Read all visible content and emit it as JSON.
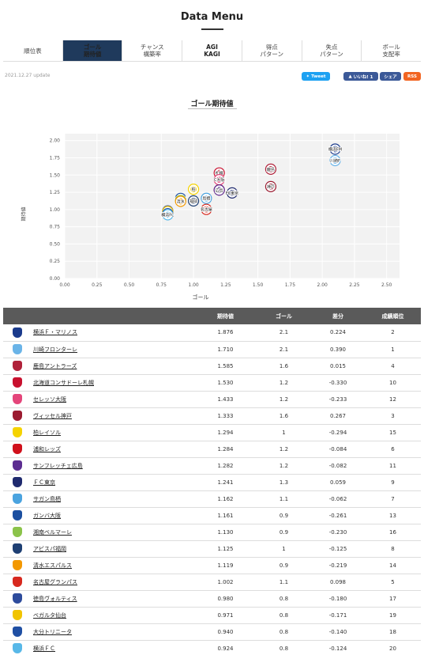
{
  "header": {
    "title": "Data Menu"
  },
  "nav": {
    "tabs": [
      {
        "label": "順位表",
        "active": false,
        "bold": false
      },
      {
        "label": "ゴール\n期待値",
        "active": true,
        "bold": true
      },
      {
        "label": "チャンス\n構築率",
        "active": false,
        "bold": false
      },
      {
        "label": "AGI\nKAGI",
        "active": false,
        "bold": true
      },
      {
        "label": "得点\nパターン",
        "active": false,
        "bold": false
      },
      {
        "label": "失点\nパターン",
        "active": false,
        "bold": false
      },
      {
        "label": "ボール\n支配率",
        "active": false,
        "bold": false
      }
    ]
  },
  "update_text": "2021.12.27 update",
  "social": {
    "tweet": "Tweet",
    "like": "いいね! 1",
    "share": "シェア",
    "rss": "RSS"
  },
  "section_title": "ゴール期待値",
  "chart_data": {
    "type": "scatter",
    "xlabel": "ゴール",
    "ylabel": "期待値",
    "xlim": [
      0,
      2.6
    ],
    "ylim": [
      0,
      2.1
    ],
    "xticks": [
      "0.00",
      "0.25",
      "0.50",
      "0.75",
      "1.00",
      "1.25",
      "1.50",
      "1.75",
      "2.00",
      "2.25",
      "2.50"
    ],
    "yticks": [
      "0.00",
      "0.25",
      "0.50",
      "0.75",
      "1.00",
      "1.25",
      "1.50",
      "1.75",
      "2.00"
    ],
    "grid": true,
    "background": "#f2f2f2",
    "points": [
      {
        "label": "横浜FM",
        "x": 2.1,
        "y": 1.876,
        "color": "#1a3a8c"
      },
      {
        "label": "川崎F",
        "x": 2.1,
        "y": 1.71,
        "color": "#6ab4e8"
      },
      {
        "label": "鹿島",
        "x": 1.6,
        "y": 1.585,
        "color": "#b0213a"
      },
      {
        "label": "札幌",
        "x": 1.2,
        "y": 1.53,
        "color": "#c8102e"
      },
      {
        "label": "C大阪",
        "x": 1.2,
        "y": 1.433,
        "color": "#e4457a"
      },
      {
        "label": "神戸",
        "x": 1.6,
        "y": 1.333,
        "color": "#9b1b30"
      },
      {
        "label": "柏",
        "x": 1.0,
        "y": 1.294,
        "color": "#f5d300"
      },
      {
        "label": "浦和",
        "x": 1.2,
        "y": 1.284,
        "color": "#d0101b"
      },
      {
        "label": "広島",
        "x": 1.2,
        "y": 1.282,
        "color": "#5c2d91"
      },
      {
        "label": "FC東京",
        "x": 1.3,
        "y": 1.241,
        "color": "#1f2a6e"
      },
      {
        "label": "鳥栖",
        "x": 1.1,
        "y": 1.162,
        "color": "#4aa3df"
      },
      {
        "label": "G大阪",
        "x": 0.9,
        "y": 1.161,
        "color": "#1b4fa0"
      },
      {
        "label": "湘南",
        "x": 0.9,
        "y": 1.13,
        "color": "#8bc34a"
      },
      {
        "label": "福岡",
        "x": 1.0,
        "y": 1.125,
        "color": "#1e3f73"
      },
      {
        "label": "清水",
        "x": 0.9,
        "y": 1.119,
        "color": "#f39800"
      },
      {
        "label": "名古屋",
        "x": 1.1,
        "y": 1.002,
        "color": "#d7281e"
      },
      {
        "label": "徳島",
        "x": 0.8,
        "y": 0.98,
        "color": "#2d4b9c"
      },
      {
        "label": "仙台",
        "x": 0.8,
        "y": 0.971,
        "color": "#f1c400"
      },
      {
        "label": "大分",
        "x": 0.8,
        "y": 0.94,
        "color": "#1f4fa3"
      },
      {
        "label": "横浜FC",
        "x": 0.8,
        "y": 0.924,
        "color": "#58b8e8"
      }
    ]
  },
  "table": {
    "columns": [
      "",
      "期待値",
      "ゴール",
      "差分",
      "成績順位"
    ],
    "rows": [
      {
        "team": "横浜Ｆ・マリノス",
        "xg": "1.876",
        "goals": "2.1",
        "diff": "0.224",
        "rank": "2",
        "color": "#1a3a8c"
      },
      {
        "team": "川崎フロンターレ",
        "xg": "1.710",
        "goals": "2.1",
        "diff": "0.390",
        "rank": "1",
        "color": "#6ab4e8"
      },
      {
        "team": "鹿島アントラーズ",
        "xg": "1.585",
        "goals": "1.6",
        "diff": "0.015",
        "rank": "4",
        "color": "#b0213a"
      },
      {
        "team": "北海道コンサドーレ札幌",
        "xg": "1.530",
        "goals": "1.2",
        "diff": "-0.330",
        "rank": "10",
        "color": "#c8102e"
      },
      {
        "team": "セレッソ大阪",
        "xg": "1.433",
        "goals": "1.2",
        "diff": "-0.233",
        "rank": "12",
        "color": "#e4457a"
      },
      {
        "team": "ヴィッセル神戸",
        "xg": "1.333",
        "goals": "1.6",
        "diff": "0.267",
        "rank": "3",
        "color": "#9b1b30"
      },
      {
        "team": "柏レイソル",
        "xg": "1.294",
        "goals": "1",
        "diff": "-0.294",
        "rank": "15",
        "color": "#f5d300"
      },
      {
        "team": "浦和レッズ",
        "xg": "1.284",
        "goals": "1.2",
        "diff": "-0.084",
        "rank": "6",
        "color": "#d0101b"
      },
      {
        "team": "サンフレッチェ広島",
        "xg": "1.282",
        "goals": "1.2",
        "diff": "-0.082",
        "rank": "11",
        "color": "#5c2d91"
      },
      {
        "team": "ＦＣ東京",
        "xg": "1.241",
        "goals": "1.3",
        "diff": "0.059",
        "rank": "9",
        "color": "#1f2a6e"
      },
      {
        "team": "サガン鳥栖",
        "xg": "1.162",
        "goals": "1.1",
        "diff": "-0.062",
        "rank": "7",
        "color": "#4aa3df"
      },
      {
        "team": "ガンバ大阪",
        "xg": "1.161",
        "goals": "0.9",
        "diff": "-0.261",
        "rank": "13",
        "color": "#1b4fa0"
      },
      {
        "team": "湘南ベルマーレ",
        "xg": "1.130",
        "goals": "0.9",
        "diff": "-0.230",
        "rank": "16",
        "color": "#8bc34a"
      },
      {
        "team": "アビスパ福岡",
        "xg": "1.125",
        "goals": "1",
        "diff": "-0.125",
        "rank": "8",
        "color": "#1e3f73"
      },
      {
        "team": "清水エスパルス",
        "xg": "1.119",
        "goals": "0.9",
        "diff": "-0.219",
        "rank": "14",
        "color": "#f39800"
      },
      {
        "team": "名古屋グランパス",
        "xg": "1.002",
        "goals": "1.1",
        "diff": "0.098",
        "rank": "5",
        "color": "#d7281e"
      },
      {
        "team": "徳島ヴォルティス",
        "xg": "0.980",
        "goals": "0.8",
        "diff": "-0.180",
        "rank": "17",
        "color": "#2d4b9c"
      },
      {
        "team": "ベガルタ仙台",
        "xg": "0.971",
        "goals": "0.8",
        "diff": "-0.171",
        "rank": "19",
        "color": "#f1c400"
      },
      {
        "team": "大分トリニータ",
        "xg": "0.940",
        "goals": "0.8",
        "diff": "-0.140",
        "rank": "18",
        "color": "#1f4fa3"
      },
      {
        "team": "横浜ＦＣ",
        "xg": "0.924",
        "goals": "0.8",
        "diff": "-0.124",
        "rank": "20",
        "color": "#58b8e8"
      }
    ]
  }
}
